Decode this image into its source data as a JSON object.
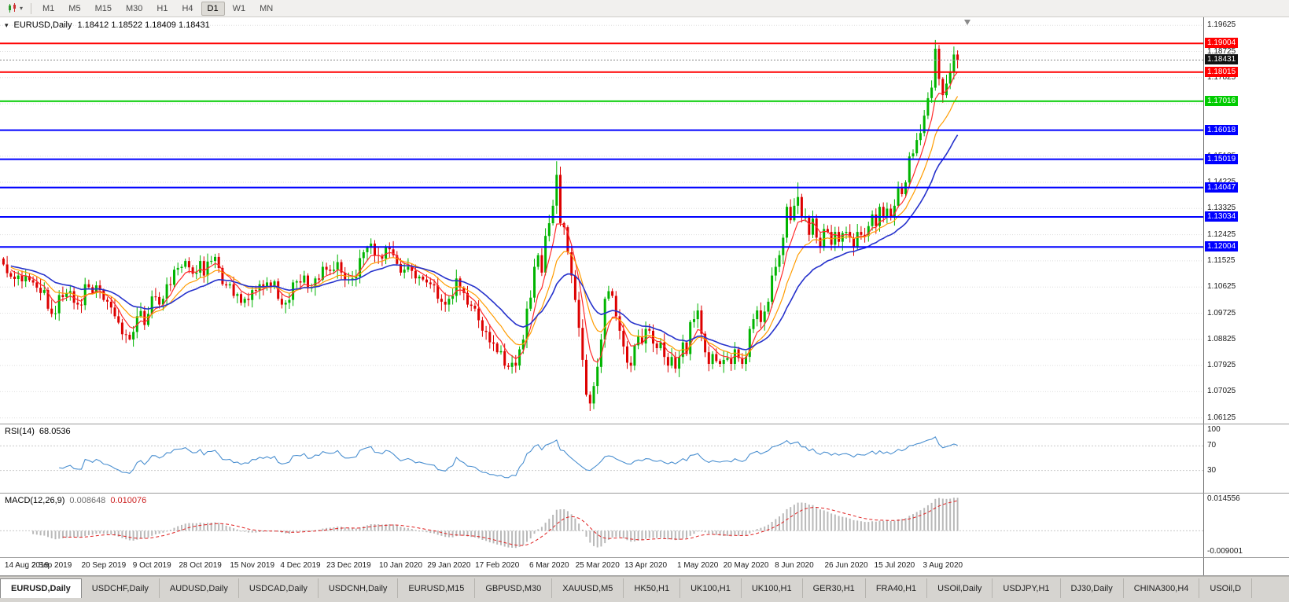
{
  "toolbar": {
    "timeframes": [
      "M1",
      "M5",
      "M15",
      "M30",
      "H1",
      "H4",
      "D1",
      "W1",
      "MN"
    ],
    "active_timeframe": "D1"
  },
  "main_chart": {
    "collapse_icon": "▾",
    "symbol": "EURUSD,Daily",
    "ohlc": "1.18412 1.18522 1.18409 1.18431",
    "price_max": 1.199,
    "price_min": 1.059,
    "axis_labels": [
      "1.19625",
      "1.18725",
      "1.17825",
      "1.16925",
      "1.16025",
      "1.15125",
      "1.14225",
      "1.13325",
      "1.12425",
      "1.11525",
      "1.10625",
      "1.09725",
      "1.08825",
      "1.07925",
      "1.07025",
      "1.06125"
    ],
    "hlines": [
      {
        "price": 1.19004,
        "label": "1.19004",
        "color": "#ff0000"
      },
      {
        "price": 1.18015,
        "label": "1.18015",
        "color": "#ff0000"
      },
      {
        "price": 1.17016,
        "label": "1.17016",
        "color": "#00cc00"
      },
      {
        "price": 1.16018,
        "label": "1.16018",
        "color": "#0000ff"
      },
      {
        "price": 1.15019,
        "label": "1.15019",
        "color": "#0000ff"
      },
      {
        "price": 1.14047,
        "label": "1.14047",
        "color": "#0000ff"
      },
      {
        "price": 1.13034,
        "label": "1.13034",
        "color": "#0000ff"
      },
      {
        "price": 1.12004,
        "label": "1.12004",
        "color": "#0000ff"
      }
    ],
    "current_price": {
      "value": 1.18431,
      "label": "1.18431"
    }
  },
  "rsi": {
    "name": "RSI(14)",
    "value": "68.0536",
    "color": "#4a8fd0",
    "levels": [
      {
        "value": 100,
        "label": "100"
      },
      {
        "value": 70,
        "label": "70"
      },
      {
        "value": 30,
        "label": "30"
      }
    ]
  },
  "macd": {
    "name": "MACD(12,26,9)",
    "main_value": "0.008648",
    "signal_value": "0.010076",
    "max": 0.0146,
    "min": -0.0095,
    "axis_labels": [
      {
        "value": 0.014556,
        "label": "0.014556"
      },
      {
        "value": -0.009001,
        "label": "-0.009001"
      }
    ]
  },
  "dates": [
    {
      "label": "14 Aug 2019",
      "i": 0
    },
    {
      "label": "2 Sep 2019",
      "i": 13
    },
    {
      "label": "20 Sep 2019",
      "i": 27
    },
    {
      "label": "9 Oct 2019",
      "i": 40
    },
    {
      "label": "28 Oct 2019",
      "i": 53
    },
    {
      "label": "15 Nov 2019",
      "i": 67
    },
    {
      "label": "4 Dec 2019",
      "i": 80
    },
    {
      "label": "23 Dec 2019",
      "i": 93
    },
    {
      "label": "10 Jan 2020",
      "i": 107
    },
    {
      "label": "29 Jan 2020",
      "i": 120
    },
    {
      "label": "17 Feb 2020",
      "i": 133
    },
    {
      "label": "6 Mar 2020",
      "i": 147
    },
    {
      "label": "25 Mar 2020",
      "i": 160
    },
    {
      "label": "13 Apr 2020",
      "i": 173
    },
    {
      "label": "1 May 2020",
      "i": 187
    },
    {
      "label": "20 May 2020",
      "i": 200
    },
    {
      "label": "8 Jun 2020",
      "i": 213
    },
    {
      "label": "26 Jun 2020",
      "i": 227
    },
    {
      "label": "15 Jul 2020",
      "i": 240
    },
    {
      "label": "3 Aug 2020",
      "i": 253
    }
  ],
  "tabs": {
    "active_index": 0,
    "items": [
      "EURUSD,Daily",
      "USDCHF,Daily",
      "AUDUSD,Daily",
      "USDCAD,Daily",
      "USDCNH,Daily",
      "EURUSD,M15",
      "GBPUSD,M30",
      "XAUUSD,M5",
      "HK50,H1",
      "UK100,H1",
      "UK100,H1",
      "GER30,H1",
      "FRA40,H1",
      "USOil,Daily",
      "USDJPY,H1",
      "DJ30,Daily",
      "CHINA300,H4",
      "USOil,D"
    ]
  },
  "chart_data": {
    "type": "candlestick",
    "symbol": "EURUSD",
    "timeframe": "Daily",
    "first_open": 1.116,
    "up_color": "#00b400",
    "down_color": "#dd0000",
    "closes": [
      1.114,
      1.111,
      1.1098,
      1.109,
      1.1102,
      1.1082,
      1.11,
      1.1086,
      1.1078,
      1.106,
      1.1042,
      1.1052,
      1.0988,
      1.097,
      1.0972,
      1.1035,
      1.1028,
      1.104,
      1.1048,
      1.1008,
      1.1002,
      1.1,
      1.1072,
      1.1062,
      1.1042,
      1.1068,
      1.1052,
      1.1018,
      1.1012,
      1.0992,
      1.0962,
      1.094,
      1.09,
      1.0898,
      1.0882,
      1.0908,
      1.0962,
      1.098,
      1.0932,
      1.097,
      1.103,
      1.1028,
      1.1002,
      1.1022,
      1.1072,
      1.107,
      1.1122,
      1.1128,
      1.1132,
      1.1152,
      1.113,
      1.1108,
      1.1112,
      1.1152,
      1.1102,
      1.115,
      1.1152,
      1.1166,
      1.1128,
      1.1072,
      1.1068,
      1.1072,
      1.1032,
      1.1038,
      1.1008,
      1.1022,
      1.1018,
      1.1052,
      1.105,
      1.1072,
      1.1062,
      1.1078,
      1.1062,
      1.1082,
      1.1022,
      1.1002,
      1.1008,
      1.1018,
      1.1078,
      1.1082,
      1.1078,
      1.1102,
      1.1058,
      1.1062,
      1.1092,
      1.1088,
      1.1132,
      1.1122,
      1.1118,
      1.1122,
      1.1148,
      1.1112,
      1.1088,
      1.1088,
      1.1092,
      1.1098,
      1.1162,
      1.1182,
      1.1198,
      1.1212,
      1.1172,
      1.117,
      1.116,
      1.1198,
      1.1192,
      1.1172,
      1.1142,
      1.1112,
      1.1122,
      1.1132,
      1.1118,
      1.1092,
      1.1098,
      1.1088,
      1.1078,
      1.1072,
      1.1068,
      1.1022,
      1.1012,
      1.1002,
      1.1022,
      1.1032,
      1.1092,
      1.106,
      1.1042,
      1.1002,
      1.0998,
      1.0988,
      1.0948,
      1.0912,
      1.0908,
      1.0872,
      1.0868,
      1.0838,
      1.0842,
      1.0792,
      1.0788,
      1.0802,
      1.0792,
      1.0848,
      1.0882,
      1.0988,
      1.1026,
      1.1132,
      1.1172,
      1.1112,
      1.1238,
      1.1282,
      1.1342,
      1.1448,
      1.1282,
      1.1268,
      1.1182,
      1.1102,
      1.1018,
      1.0922,
      1.0812,
      1.0692,
      1.0662,
      1.0722,
      1.0788,
      1.0882,
      1.1022,
      1.1048,
      1.1032,
      1.0962,
      1.0912,
      1.0858,
      1.0802,
      1.0792,
      1.0862,
      1.0892,
      1.0868,
      1.0918,
      1.0912,
      1.0868,
      1.0852,
      1.0872,
      1.0822,
      1.0792,
      1.0822,
      1.0782,
      1.0822,
      1.0872,
      1.0832,
      1.0942,
      1.0952,
      1.0982,
      1.0902,
      1.0838,
      1.0798,
      1.0832,
      1.0808,
      1.0798,
      1.0812,
      1.0818,
      1.0798,
      1.0848,
      1.0818,
      1.0798,
      1.0822,
      1.0918,
      1.0952,
      1.0982,
      1.0942,
      1.0978,
      1.1012,
      1.1102,
      1.1132,
      1.1172,
      1.1232,
      1.1338,
      1.1292,
      1.1342,
      1.1372,
      1.1302,
      1.1302,
      1.1242,
      1.1298,
      1.1232,
      1.1202,
      1.1262,
      1.1252,
      1.1208,
      1.1252,
      1.1218,
      1.1248,
      1.1252,
      1.1232,
      1.1198,
      1.1252,
      1.1242,
      1.1238,
      1.1272,
      1.1312,
      1.1272,
      1.1338,
      1.1302,
      1.1332,
      1.1302,
      1.1342,
      1.1402,
      1.1382,
      1.1422,
      1.1512,
      1.1522,
      1.1568,
      1.1592,
      1.1652,
      1.1712,
      1.1748,
      1.1882,
      1.1778,
      1.1722,
      1.1762,
      1.1802,
      1.1862,
      1.1843
    ],
    "extremes": [
      {
        "i": 34,
        "low": 1.0879
      },
      {
        "i": 136,
        "low": 1.0778
      },
      {
        "i": 149,
        "high": 1.1495
      },
      {
        "i": 158,
        "low": 1.0636
      },
      {
        "i": 214,
        "high": 1.1422
      },
      {
        "i": 251,
        "high": 1.1912
      },
      {
        "i": 252,
        "high": 1.1895
      },
      {
        "i": 253,
        "low": 1.1696
      }
    ],
    "moving_averages": [
      {
        "period": 6,
        "color": "#ff2a2a",
        "width": 1.2
      },
      {
        "period": 13,
        "color": "#ff9c00",
        "width": 1.2
      },
      {
        "period": 26,
        "color": "#2632cc",
        "width": 1.6
      }
    ],
    "indicators": {
      "rsi": {
        "period": 14,
        "last": 68.0536
      },
      "macd": {
        "fast": 12,
        "slow": 26,
        "signal": 9,
        "last_main": 0.008648,
        "last_signal": 0.010076
      }
    }
  }
}
